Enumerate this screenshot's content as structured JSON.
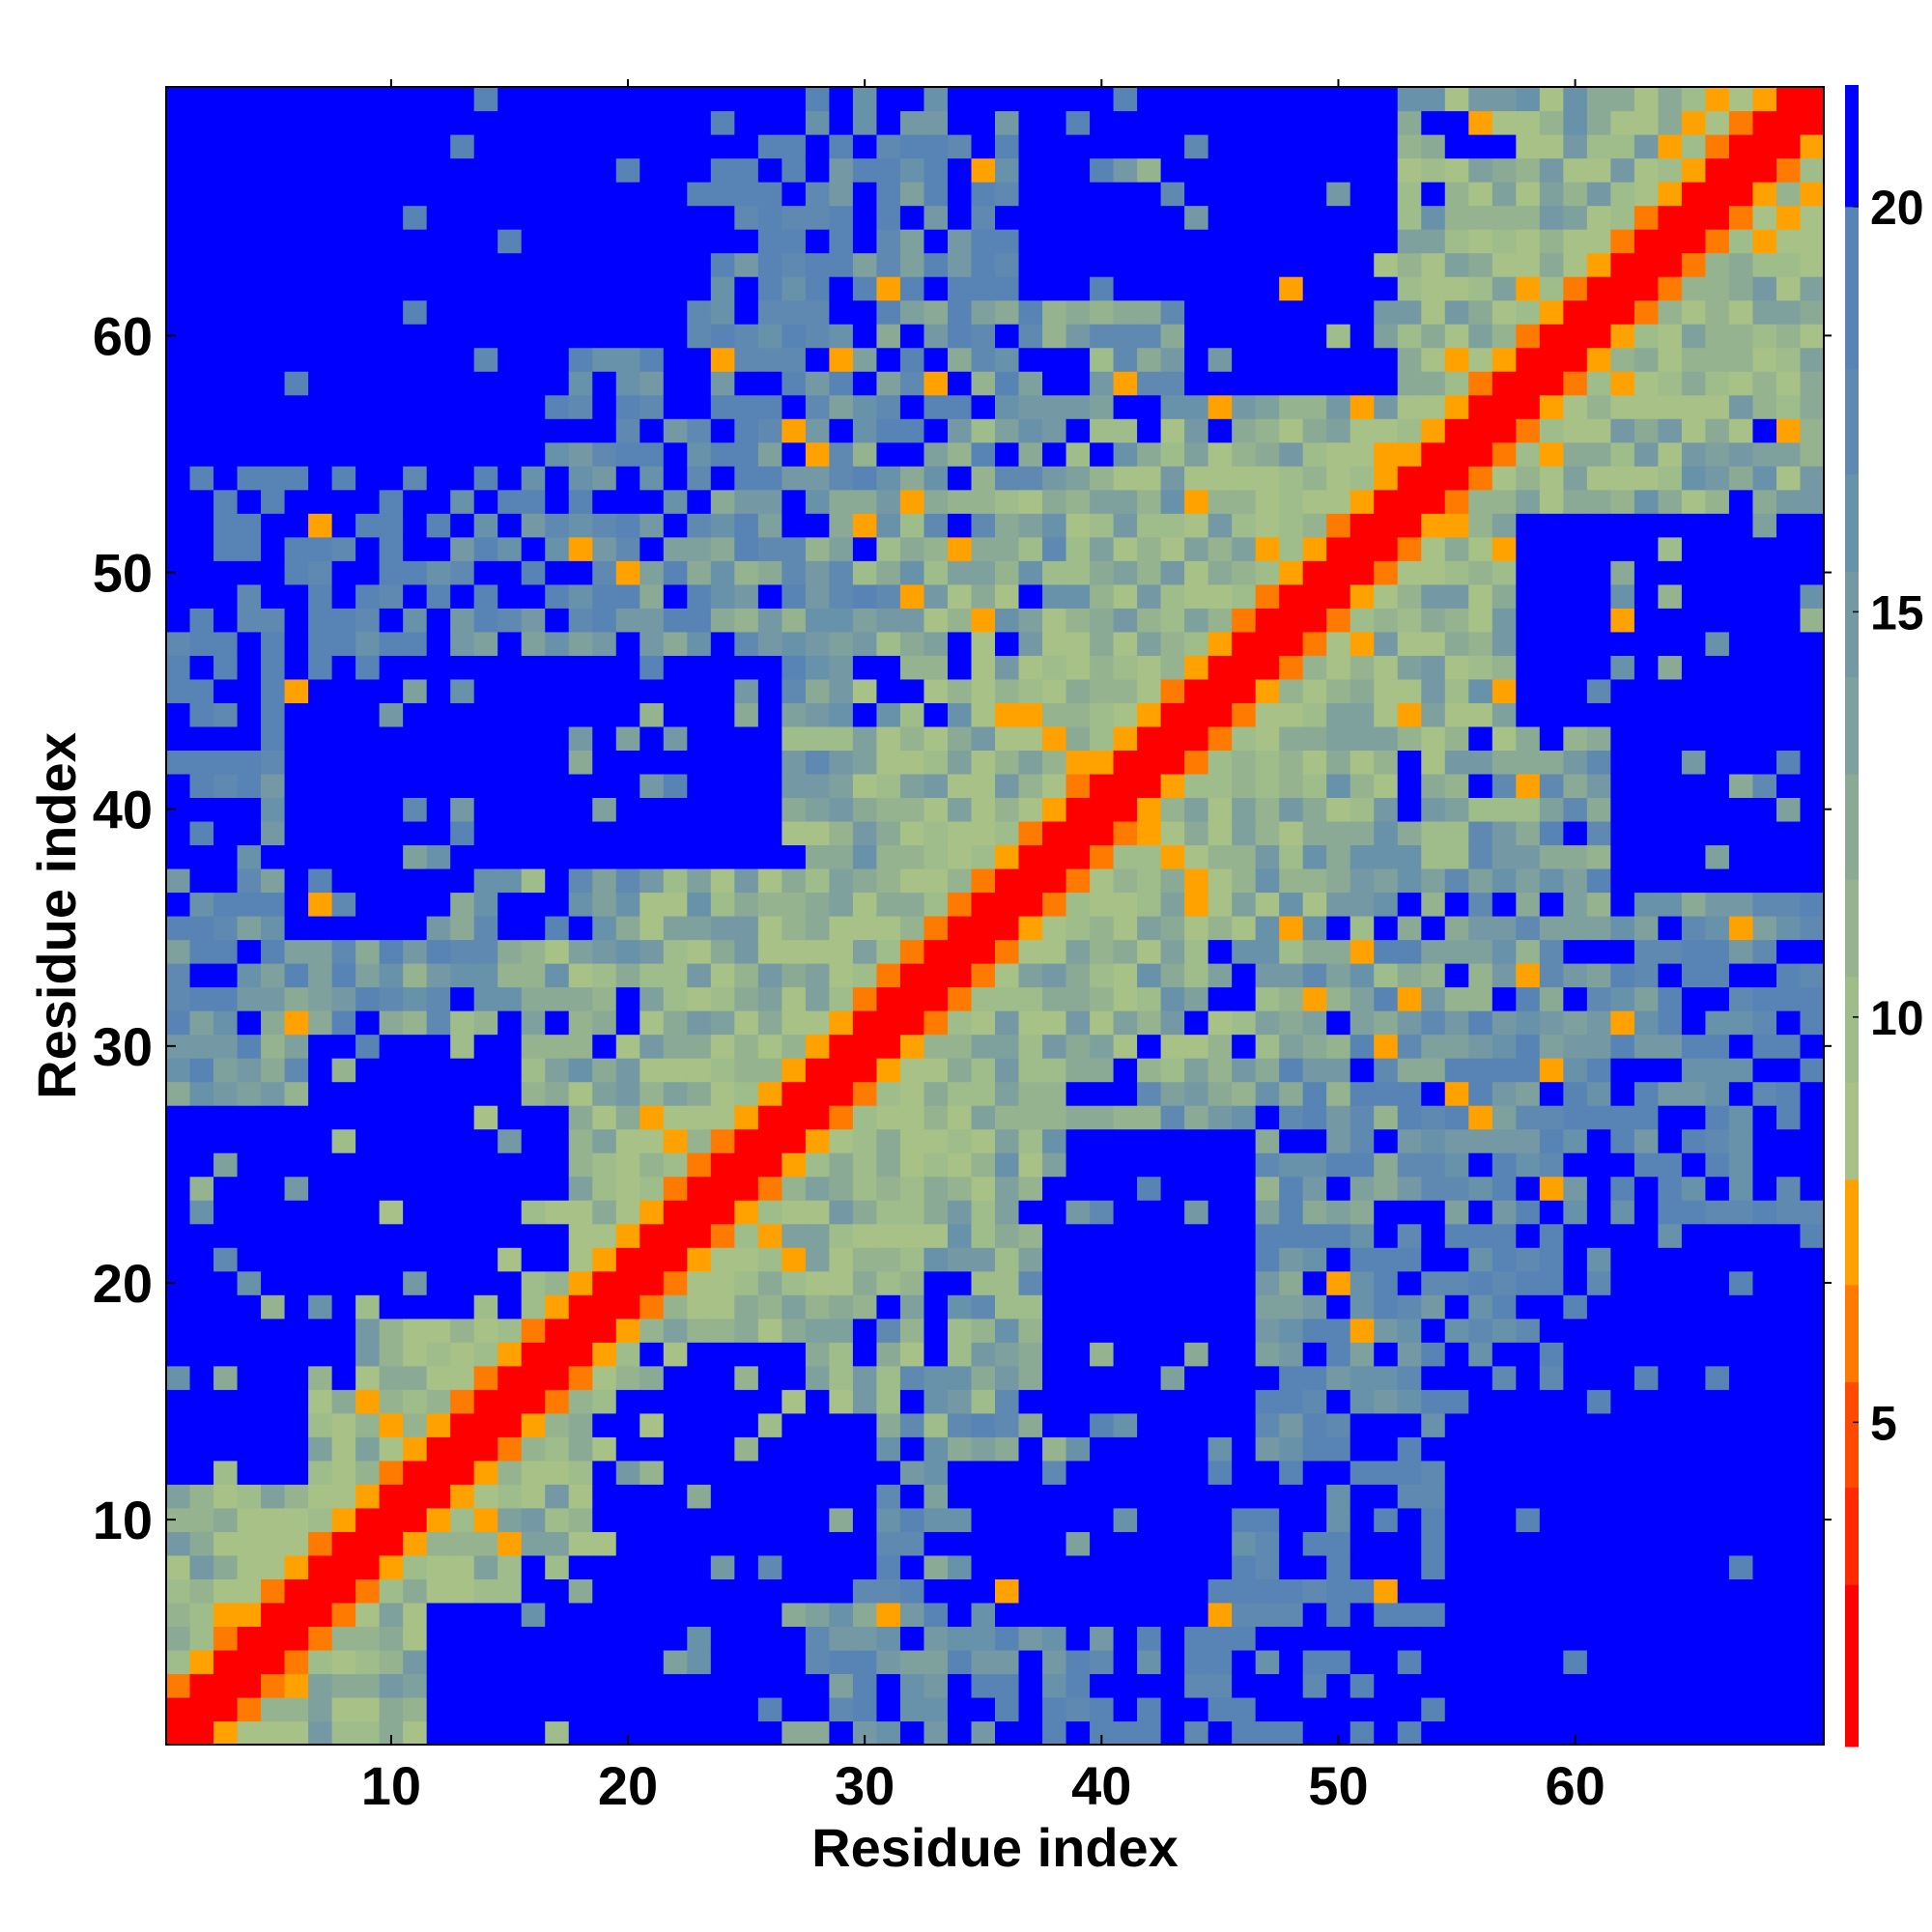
{
  "chart_data": {
    "type": "heatmap",
    "title": "",
    "xlabel": "Residue index",
    "ylabel": "Residue index",
    "n_residues": 70,
    "xlim": [
      1,
      70
    ],
    "ylim": [
      1,
      70
    ],
    "x_ticks": [
      10,
      20,
      30,
      40,
      50,
      60
    ],
    "y_ticks": [
      10,
      20,
      30,
      40,
      50,
      60
    ],
    "colorbar": {
      "range": [
        1,
        21.5
      ],
      "ticks": [
        5,
        10,
        15,
        20
      ],
      "levels": [
        {
          "from": 1.0,
          "to": 3.0,
          "color": "#ff0000"
        },
        {
          "from": 3.0,
          "to": 4.2,
          "color": "#ff2a00"
        },
        {
          "from": 4.2,
          "to": 5.5,
          "color": "#ff4a00"
        },
        {
          "from": 5.5,
          "to": 6.7,
          "color": "#ff7a00"
        },
        {
          "from": 6.7,
          "to": 8.0,
          "color": "#ffa200"
        },
        {
          "from": 8.0,
          "to": 9.2,
          "color": "#a7c187"
        },
        {
          "from": 9.2,
          "to": 10.5,
          "color": "#9ebd8a"
        },
        {
          "from": 10.5,
          "to": 11.7,
          "color": "#95b38f"
        },
        {
          "from": 11.7,
          "to": 13.0,
          "color": "#8aaa96"
        },
        {
          "from": 13.0,
          "to": 14.2,
          "color": "#7fa19d"
        },
        {
          "from": 14.2,
          "to": 15.5,
          "color": "#7499a4"
        },
        {
          "from": 15.5,
          "to": 16.7,
          "color": "#6891aa"
        },
        {
          "from": 16.7,
          "to": 18.0,
          "color": "#5f89b1"
        },
        {
          "from": 18.0,
          "to": 20.0,
          "color": "#5784b4"
        },
        {
          "from": 20.0,
          "to": 21.5,
          "color": "#0000ff"
        }
      ]
    },
    "distance_model": {
      "description_of_values": "Pairwise residue distances (color scale); diagonal cells ~1-3, contact arms near diagonal ~6-8, far regions saturated at >20.",
      "contacts": [
        [
          36,
          44,
          7.5
        ],
        [
          37,
          44,
          7.5
        ],
        [
          38,
          43,
          7.0
        ],
        [
          39,
          42,
          7.0
        ],
        [
          21,
          27,
          7.5
        ],
        [
          22,
          26,
          7.0
        ],
        [
          23,
          25,
          6.5
        ],
        [
          9,
          15,
          7.5
        ],
        [
          10,
          14,
          7.0
        ],
        [
          3,
          6,
          7.0
        ],
        [
          4,
          6,
          7.5
        ],
        [
          65,
          69,
          7.0
        ],
        [
          66,
          70,
          7.0
        ],
        [
          52,
          55,
          7.5
        ],
        [
          47,
          51,
          7.5
        ],
        [
          27,
          56,
          7.5
        ],
        [
          28,
          55,
          7.5
        ],
        [
          30,
          52,
          7.5
        ],
        [
          34,
          51,
          7.5
        ],
        [
          32,
          49,
          7.5
        ],
        [
          18,
          51,
          7.5
        ],
        [
          20,
          50,
          7.5
        ],
        [
          6,
          31,
          7.5
        ],
        [
          7,
          36,
          7.5
        ],
        [
          6,
          45,
          7.5
        ],
        [
          7,
          52,
          7.5
        ],
        [
          32,
          53,
          7.5
        ],
        [
          29,
          59,
          7.5
        ],
        [
          41,
          58,
          7.5
        ],
        [
          36,
          37,
          7.5
        ],
        [
          33,
          58,
          7.5
        ],
        [
          35,
          67,
          7.5
        ],
        [
          64,
          68,
          7.5
        ],
        [
          58,
          62,
          7.5
        ],
        [
          51,
          57,
          7.5
        ],
        [
          55,
          59,
          7.5
        ],
        [
          44,
          53,
          7.5
        ],
        [
          45,
          57,
          7.5
        ],
        [
          48,
          62,
          7.5
        ],
        [
          56,
          69,
          7.5
        ],
        [
          24,
          59,
          7.5
        ],
        [
          31,
          62,
          7.5
        ],
        [
          12,
          13,
          7.5
        ],
        [
          35,
          48,
          7.5
        ]
      ],
      "far_regions": [
        {
          "x": [
            1,
            12
          ],
          "y": [
            55,
            70
          ]
        },
        {
          "x": [
            12,
            26
          ],
          "y": [
            38,
            46
          ]
        },
        {
          "x": [
            19,
            27
          ],
          "y": [
            10,
            17
          ]
        },
        {
          "x": [
            40,
            46
          ],
          "y": [
            18,
            26
          ]
        },
        {
          "x": [
            55,
            70
          ],
          "y": [
            1,
            16
          ]
        },
        {
          "x": [
            60,
            70
          ],
          "y": [
            17,
            22
          ]
        },
        {
          "x": [
            58,
            70
          ],
          "y": [
            44,
            52
          ]
        },
        {
          "x": [
            37,
            47
          ],
          "y": [
            62,
            70
          ]
        },
        {
          "x": [
            7,
            15
          ],
          "y": [
            20,
            30
          ]
        },
        {
          "x": [
            16,
            27
          ],
          "y": [
            1,
            8
          ]
        },
        {
          "x": [
            1,
            6
          ],
          "y": [
            12,
            22
          ]
        },
        {
          "x": [
            35,
            45
          ],
          "y": [
            6,
            12
          ]
        }
      ]
    }
  }
}
